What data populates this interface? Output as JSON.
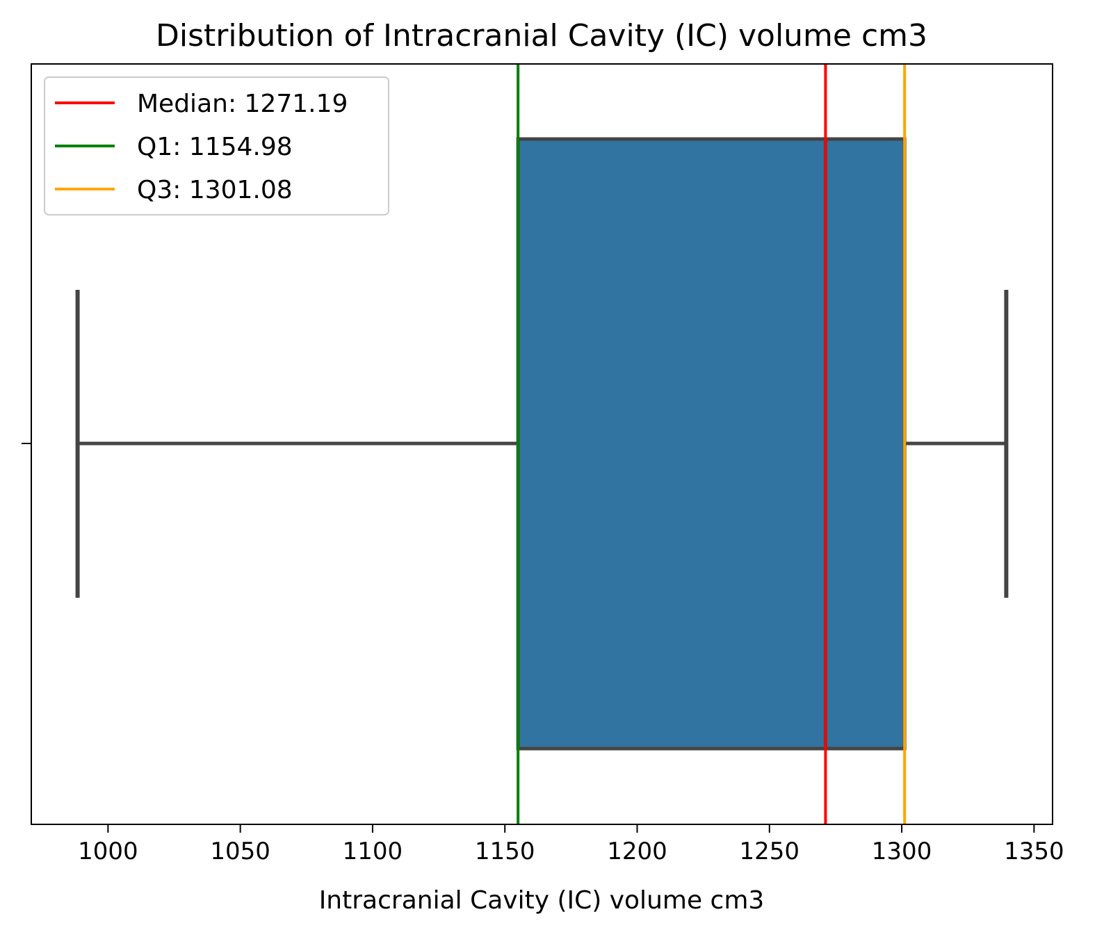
{
  "chart_data": {
    "type": "box",
    "title": "Distribution of Intracranial Cavity (IC) volume cm3",
    "xlabel": "Intracranial Cavity (IC) volume cm3",
    "ylabel": "",
    "xlim": [
      971,
      1357
    ],
    "xticks": [
      1000,
      1050,
      1100,
      1150,
      1200,
      1250,
      1300,
      1350
    ],
    "grid": false,
    "legend_position": "top-left",
    "box": {
      "whisker_low": 988.5,
      "q1": 1154.98,
      "median": 1271.19,
      "q3": 1301.08,
      "whisker_high": 1339.5,
      "fill_color": "#3274a1",
      "edge_color": "#444444"
    },
    "reference_lines": [
      {
        "label": "Median: 1271.19",
        "value": 1271.19,
        "color": "#ff0000"
      },
      {
        "label": "Q1: 1154.98",
        "value": 1154.98,
        "color": "#008000"
      },
      {
        "label": "Q3: 1301.08",
        "value": 1301.08,
        "color": "#ffa500"
      }
    ]
  }
}
